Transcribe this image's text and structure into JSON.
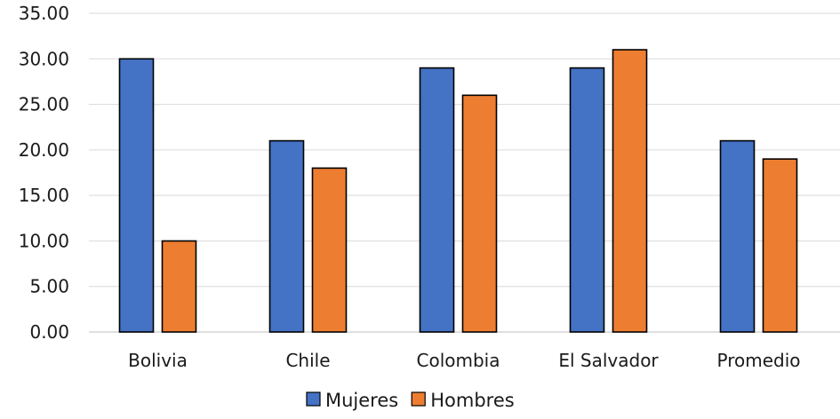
{
  "chart_data": {
    "type": "bar",
    "title": "",
    "xlabel": "",
    "ylabel": "",
    "categories": [
      "Bolivia",
      "Chile",
      "Colombia",
      "El Salvador",
      "Promedio"
    ],
    "series": [
      {
        "name": "Mujeres",
        "values": [
          30,
          21,
          29,
          29,
          21
        ],
        "color": "#4472C4"
      },
      {
        "name": "Hombres",
        "values": [
          10,
          18,
          26,
          31,
          19
        ],
        "color": "#ED7D31"
      }
    ],
    "ylim": [
      0,
      35
    ],
    "yticks": [
      "0.00",
      "5.00",
      "10.00",
      "15.00",
      "20.00",
      "25.00",
      "30.00",
      "35.00"
    ],
    "ytick_values": [
      0,
      5,
      10,
      15,
      20,
      25,
      30,
      35
    ],
    "grid": true,
    "legend_position": "bottom-center"
  }
}
